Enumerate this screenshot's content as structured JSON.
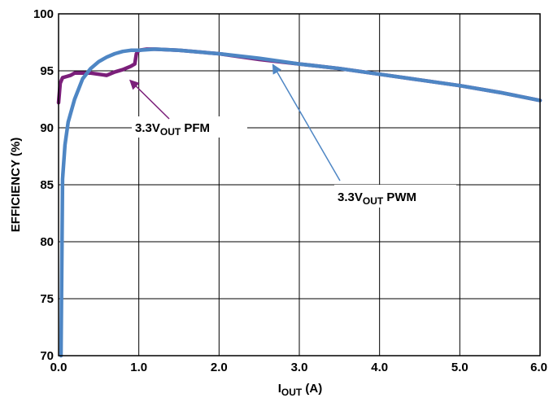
{
  "chart_data": {
    "type": "line",
    "xlabel": {
      "main": "I",
      "sub": "OUT",
      "suffix": " (A)"
    },
    "ylabel": "EFFICIENCY (%)",
    "xlim": [
      0,
      6
    ],
    "ylim": [
      70,
      100
    ],
    "x_ticks": [
      "0.0",
      "1.0",
      "2.0",
      "3.0",
      "4.0",
      "5.0",
      "6.0"
    ],
    "y_ticks": [
      "70",
      "75",
      "80",
      "85",
      "90",
      "95",
      "100"
    ],
    "grid": true,
    "series": [
      {
        "name": "3.3VOUT PFM",
        "color": "#7B1F7A",
        "x": [
          0.0,
          0.02,
          0.05,
          0.1,
          0.15,
          0.2,
          0.3,
          0.4,
          0.5,
          0.6,
          0.7,
          0.8,
          0.9,
          0.95,
          0.97,
          1.0,
          1.1,
          1.2,
          1.5,
          2.0,
          2.5,
          3.0,
          3.5,
          4.0,
          4.5,
          5.0,
          5.5,
          6.0
        ],
        "y": [
          92.2,
          93.9,
          94.4,
          94.5,
          94.6,
          94.8,
          94.8,
          94.8,
          94.7,
          94.6,
          94.9,
          95.1,
          95.4,
          95.6,
          96.5,
          96.8,
          96.9,
          96.9,
          96.8,
          96.5,
          96.0,
          95.6,
          95.2,
          94.7,
          94.2,
          93.7,
          93.1,
          92.4
        ]
      },
      {
        "name": "3.3VOUT PWM",
        "color": "#4E86C4",
        "x": [
          0.03,
          0.05,
          0.08,
          0.12,
          0.2,
          0.3,
          0.4,
          0.5,
          0.6,
          0.7,
          0.8,
          0.9,
          1.0,
          1.2,
          1.5,
          2.0,
          2.5,
          3.0,
          3.5,
          4.0,
          4.5,
          5.0,
          5.5,
          6.0
        ],
        "y": [
          70.0,
          85.5,
          88.5,
          90.5,
          92.5,
          94.3,
          95.2,
          95.8,
          96.2,
          96.5,
          96.7,
          96.8,
          96.8,
          96.9,
          96.8,
          96.5,
          96.1,
          95.6,
          95.2,
          94.7,
          94.2,
          93.7,
          93.1,
          92.4
        ]
      }
    ],
    "annotations": [
      {
        "main": "3.3V",
        "sub": "OUT",
        "suffix": " PFM",
        "target": [
          0.85,
          94.6
        ]
      },
      {
        "main": "3.3V",
        "sub": "OUT",
        "suffix": " PWM",
        "target": [
          2.65,
          95.9
        ]
      }
    ]
  }
}
